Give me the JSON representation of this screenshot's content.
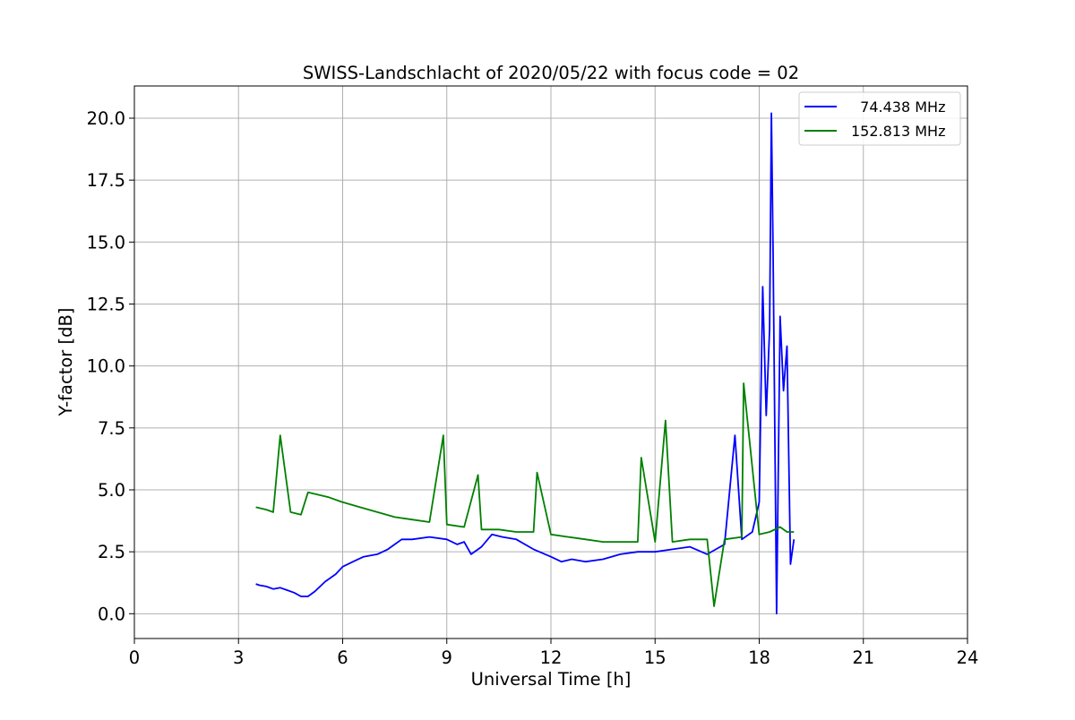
{
  "chart_data": {
    "type": "line",
    "title": "SWISS-Landschlacht of 2020/05/22 with focus code = 02",
    "xlabel": "Universal Time [h]",
    "ylabel": "Y-factor [dB]",
    "xlim": [
      0,
      24
    ],
    "ylim": [
      -1.0,
      21.3
    ],
    "xticks": [
      0,
      3,
      6,
      9,
      12,
      15,
      18,
      21,
      24
    ],
    "yticks": [
      0.0,
      2.5,
      5.0,
      7.5,
      10.0,
      12.5,
      15.0,
      17.5,
      20.0
    ],
    "xtick_labels": [
      "0",
      "3",
      "6",
      "9",
      "12",
      "15",
      "18",
      "21",
      "24"
    ],
    "ytick_labels": [
      "0.0",
      "2.5",
      "5.0",
      "7.5",
      "10.0",
      "12.5",
      "15.0",
      "17.5",
      "20.0"
    ],
    "grid": true,
    "legend_position": "top-right",
    "series": [
      {
        "name": "  74.438 MHz",
        "color": "#0000ff",
        "x": [
          3.5,
          3.6,
          3.8,
          4.0,
          4.2,
          4.4,
          4.6,
          4.8,
          5.0,
          5.2,
          5.5,
          5.8,
          6.0,
          6.3,
          6.6,
          7.0,
          7.3,
          7.5,
          7.7,
          8.0,
          8.5,
          9.0,
          9.3,
          9.5,
          9.7,
          10.0,
          10.3,
          10.6,
          11.0,
          11.5,
          12.0,
          12.3,
          12.6,
          13.0,
          13.5,
          14.0,
          14.5,
          15.0,
          15.5,
          16.0,
          16.5,
          17.0,
          17.3,
          17.5,
          17.8,
          18.0,
          18.1,
          18.2,
          18.3,
          18.35,
          18.4,
          18.5,
          18.6,
          18.7,
          18.8,
          18.9,
          19.0
        ],
        "y": [
          1.2,
          1.15,
          1.1,
          1.0,
          1.05,
          0.95,
          0.85,
          0.7,
          0.7,
          0.9,
          1.3,
          1.6,
          1.9,
          2.1,
          2.3,
          2.4,
          2.6,
          2.8,
          3.0,
          3.0,
          3.1,
          3.0,
          2.8,
          2.9,
          2.4,
          2.7,
          3.2,
          3.1,
          3.0,
          2.6,
          2.3,
          2.1,
          2.2,
          2.1,
          2.2,
          2.4,
          2.5,
          2.5,
          2.6,
          2.7,
          2.4,
          2.8,
          7.2,
          3.0,
          3.3,
          4.5,
          13.2,
          8.0,
          11.5,
          20.2,
          14.5,
          0.0,
          12.0,
          9.0,
          10.8,
          2.0,
          3.0
        ]
      },
      {
        "name": "152.813 MHz",
        "color": "#008000",
        "x": [
          3.5,
          3.8,
          4.0,
          4.2,
          4.5,
          4.8,
          5.0,
          5.3,
          5.6,
          6.0,
          6.5,
          7.0,
          7.5,
          8.0,
          8.5,
          8.9,
          9.0,
          9.5,
          9.9,
          10.0,
          10.5,
          11.0,
          11.5,
          11.6,
          12.0,
          12.5,
          13.0,
          13.5,
          14.0,
          14.5,
          14.6,
          15.0,
          15.3,
          15.5,
          16.0,
          16.5,
          16.7,
          17.0,
          17.5,
          17.55,
          18.0,
          18.3,
          18.6,
          18.8,
          19.0
        ],
        "y": [
          4.3,
          4.2,
          4.1,
          7.2,
          4.1,
          4.0,
          4.9,
          4.8,
          4.7,
          4.5,
          4.3,
          4.1,
          3.9,
          3.8,
          3.7,
          7.2,
          3.6,
          3.5,
          5.6,
          3.4,
          3.4,
          3.3,
          3.3,
          5.7,
          3.2,
          3.1,
          3.0,
          2.9,
          2.9,
          2.9,
          6.3,
          2.9,
          7.8,
          2.9,
          3.0,
          3.0,
          0.3,
          3.0,
          3.1,
          9.3,
          3.2,
          3.3,
          3.5,
          3.3,
          3.3
        ]
      }
    ]
  }
}
